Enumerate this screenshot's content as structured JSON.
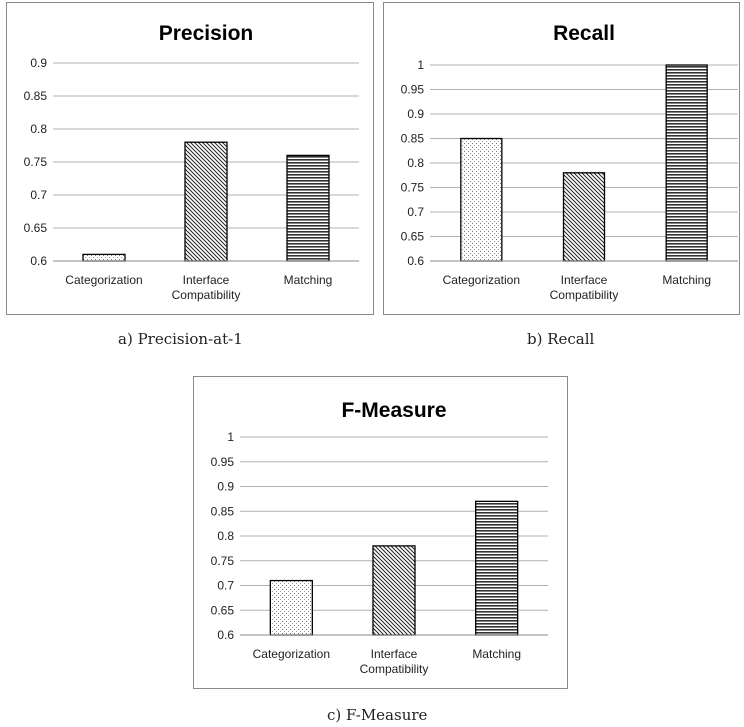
{
  "chart_data": [
    {
      "type": "bar",
      "title": "Precision",
      "categories": [
        "Categorization",
        "Interface Compatibility",
        "Matching"
      ],
      "values": [
        0.61,
        0.78,
        0.76
      ],
      "ylim": [
        0.6,
        0.9
      ],
      "yticks": [
        "0.6",
        "0.65",
        "0.7",
        "0.75",
        "0.8",
        "0.85",
        "0.9"
      ],
      "grid": true,
      "caption": "a) Precision-at-1"
    },
    {
      "type": "bar",
      "title": "Recall",
      "categories": [
        "Categorization",
        "Interface Compatibility",
        "Matching"
      ],
      "values": [
        0.85,
        0.78,
        1.0
      ],
      "ylim": [
        0.6,
        1.0
      ],
      "yticks": [
        "0.6",
        "0.65",
        "0.7",
        "0.75",
        "0.8",
        "0.85",
        "0.9",
        "0.95",
        "1"
      ],
      "grid": true,
      "caption": "b) Recall"
    },
    {
      "type": "bar",
      "title": "F-Measure",
      "categories": [
        "Categorization",
        "Interface Compatibility",
        "Matching"
      ],
      "values": [
        0.71,
        0.78,
        0.87
      ],
      "ylim": [
        0.6,
        1.0
      ],
      "yticks": [
        "0.6",
        "0.65",
        "0.7",
        "0.75",
        "0.8",
        "0.85",
        "0.9",
        "0.95",
        "1"
      ],
      "grid": true,
      "caption": "c) F-Measure"
    }
  ]
}
